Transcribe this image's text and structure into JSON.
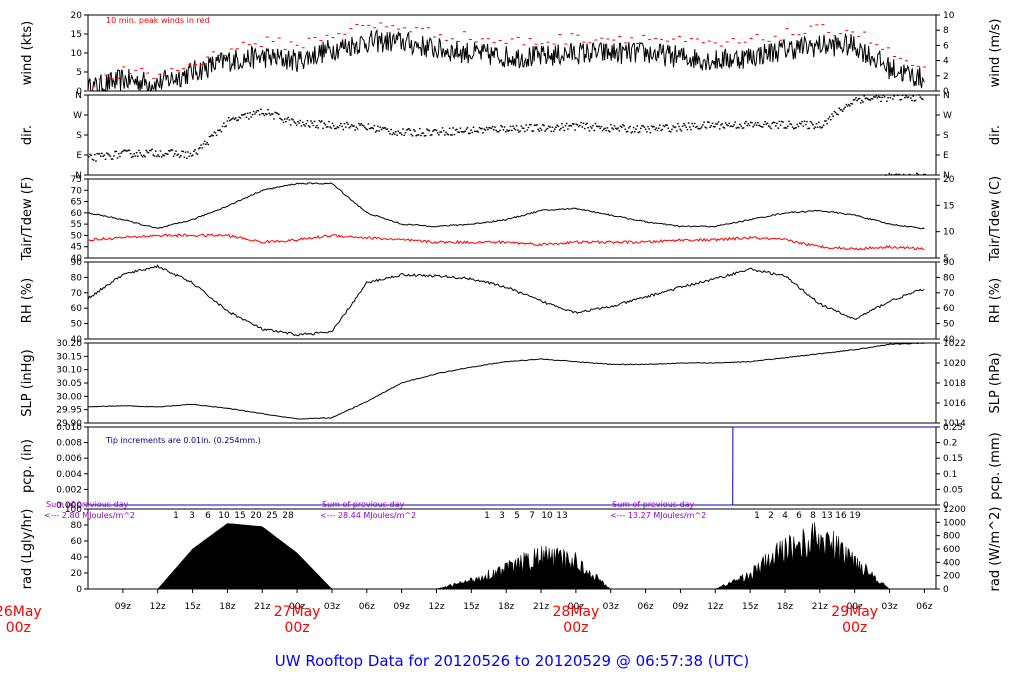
{
  "title": "UW Rooftop Data for 20120526  to  20120529 @ 06:57:38  (UTC)",
  "colors": {
    "title": "#0000ff",
    "day_label": "#ff0000",
    "peak_wind": "#ff0000",
    "tdew": "#ff0000",
    "rain_line": "#0000cc",
    "rain_note": "#00008b",
    "rad_note": "#9400d3",
    "series": "#000000"
  },
  "time_axis": {
    "start": "2012-05-26 06:00Z",
    "end": "2012-05-29 07:00Z",
    "hour_ticks": [
      "09z",
      "12z",
      "15z",
      "18z",
      "21z",
      "00z",
      "03z",
      "06z",
      "09z",
      "12z",
      "15z",
      "18z",
      "21z",
      "00z",
      "03z",
      "06z",
      "09z",
      "12z",
      "15z",
      "18z",
      "21z",
      "00z",
      "03z",
      "06z"
    ],
    "day_labels": [
      {
        "month_day": "26May",
        "hour": "00z"
      },
      {
        "month_day": "27May",
        "hour": "00z"
      },
      {
        "month_day": "28May",
        "hour": "00z"
      },
      {
        "month_day": "29May",
        "hour": "00z"
      }
    ]
  },
  "chart_data": [
    {
      "type": "line",
      "name": "wind",
      "ylabel_left": "wind (kts)",
      "ylabel_right": "wind (m/s)",
      "ylim": [
        0,
        20
      ],
      "left_ticks": [
        "0",
        "5",
        "10",
        "15",
        "20"
      ],
      "right_ticks": [
        "0",
        "2",
        "4",
        "6",
        "8",
        "10"
      ],
      "note": "10 min. peak winds in red",
      "x": [
        "05-26 06z",
        "05-26 09z",
        "05-26 12z",
        "05-26 15z",
        "05-26 18z",
        "05-26 21z",
        "05-27 00z",
        "05-27 03z",
        "05-27 06z",
        "05-27 09z",
        "05-27 12z",
        "05-27 15z",
        "05-27 18z",
        "05-27 21z",
        "05-28 00z",
        "05-28 03z",
        "05-28 06z",
        "05-28 09z",
        "05-28 12z",
        "05-28 15z",
        "05-28 18z",
        "05-28 21z",
        "05-29 00z",
        "05-29 03z",
        "05-29 06z"
      ],
      "series": [
        {
          "values": [
            0.5,
            3,
            2,
            5,
            8,
            9,
            8,
            11,
            13,
            13,
            11,
            10,
            9,
            9,
            10,
            10,
            10,
            9,
            8,
            9,
            11,
            12,
            12,
            6,
            3
          ]
        },
        {
          "values": [
            1,
            5,
            4,
            7,
            11,
            13,
            12,
            15,
            17,
            17,
            15,
            14,
            13,
            13,
            14,
            14,
            14,
            13,
            12,
            13,
            15,
            16,
            16,
            10,
            5
          ]
        }
      ]
    },
    {
      "type": "scatter",
      "name": "dir",
      "ylabel_left": "dir.",
      "ylabel_right": "dir.",
      "ylim": [
        0,
        360
      ],
      "left_ticks": [
        "N",
        "E",
        "S",
        "W",
        "N"
      ],
      "right_ticks": [
        "N",
        "E",
        "S",
        "W",
        "N"
      ],
      "x": [
        "05-26 06z",
        "05-26 09z",
        "05-26 12z",
        "05-26 15z",
        "05-26 18z",
        "05-26 21z",
        "05-27 00z",
        "05-27 03z",
        "05-27 06z",
        "05-27 09z",
        "05-27 12z",
        "05-27 15z",
        "05-27 18z",
        "05-27 21z",
        "05-28 00z",
        "05-28 03z",
        "05-28 06z",
        "05-28 09z",
        "05-28 12z",
        "05-28 15z",
        "05-28 18z",
        "05-28 21z",
        "05-29 00z",
        "05-29 03z",
        "05-29 06z"
      ],
      "values": [
        75,
        95,
        100,
        90,
        240,
        285,
        230,
        225,
        215,
        190,
        195,
        200,
        210,
        210,
        220,
        210,
        205,
        215,
        225,
        225,
        225,
        225,
        340,
        350,
        350
      ]
    },
    {
      "type": "line",
      "name": "temperature",
      "ylabel_left": "Tair/Tdew (F)",
      "ylabel_right": "Tair/Tdew (C)",
      "ylim": [
        40,
        75
      ],
      "left_ticks": [
        "40",
        "45",
        "50",
        "55",
        "60",
        "65",
        "70",
        "75"
      ],
      "right_ticks": [
        "5",
        "10",
        "15",
        "20"
      ],
      "x": [
        "05-26 06z",
        "05-26 09z",
        "05-26 12z",
        "05-26 15z",
        "05-26 18z",
        "05-26 21z",
        "05-27 00z",
        "05-27 03z",
        "05-27 06z",
        "05-27 09z",
        "05-27 12z",
        "05-27 15z",
        "05-27 18z",
        "05-27 21z",
        "05-28 00z",
        "05-28 03z",
        "05-28 06z",
        "05-28 09z",
        "05-28 12z",
        "05-28 15z",
        "05-28 18z",
        "05-28 21z",
        "05-29 00z",
        "05-29 03z",
        "05-29 06z"
      ],
      "series": [
        {
          "values": [
            60,
            57,
            53,
            57,
            63,
            70,
            73,
            73,
            60,
            55,
            54,
            55,
            57,
            61,
            62,
            59,
            56,
            54,
            54,
            57,
            60,
            61,
            59,
            55,
            53
          ]
        },
        {
          "values": [
            48,
            49,
            50,
            50,
            50,
            47,
            48,
            50,
            49,
            48,
            47,
            47,
            47,
            46,
            47,
            47,
            47,
            48,
            48,
            49,
            48,
            45,
            44,
            45,
            44
          ]
        }
      ]
    },
    {
      "type": "line",
      "name": "rh",
      "ylabel_left": "RH (%)",
      "ylabel_right": "RH (%)",
      "ylim": [
        35,
        90
      ],
      "left_ticks": [
        "40",
        "50",
        "60",
        "70",
        "80",
        "90"
      ],
      "right_ticks": [
        "40",
        "50",
        "60",
        "70",
        "80",
        "90"
      ],
      "x": [
        "05-26 06z",
        "05-26 09z",
        "05-26 12z",
        "05-26 15z",
        "05-26 18z",
        "05-26 21z",
        "05-27 00z",
        "05-27 03z",
        "05-27 06z",
        "05-27 09z",
        "05-27 12z",
        "05-27 15z",
        "05-27 18z",
        "05-27 21z",
        "05-28 00z",
        "05-28 03z",
        "05-28 06z",
        "05-28 09z",
        "05-28 12z",
        "05-28 15z",
        "05-28 18z",
        "05-28 21z",
        "05-29 00z",
        "05-29 03z",
        "05-29 06z"
      ],
      "values": [
        64,
        81,
        87,
        75,
        55,
        42,
        38,
        40,
        75,
        81,
        80,
        78,
        72,
        62,
        54,
        58,
        65,
        72,
        78,
        85,
        80,
        60,
        49,
        62,
        71
      ]
    },
    {
      "type": "line",
      "name": "slp",
      "ylabel_left": "SLP (inHg)",
      "ylabel_right": "SLP (hPa)",
      "ylim": [
        29.9,
        30.2
      ],
      "left_ticks": [
        "29.90",
        "29.95",
        "30.00",
        "30.05",
        "30.10",
        "30.15",
        "30.20"
      ],
      "right_ticks": [
        "1014",
        "1016",
        "1018",
        "1020",
        "1022"
      ],
      "x": [
        "05-26 06z",
        "05-26 09z",
        "05-26 12z",
        "05-26 15z",
        "05-26 18z",
        "05-26 21z",
        "05-27 00z",
        "05-27 03z",
        "05-27 06z",
        "05-27 09z",
        "05-27 12z",
        "05-27 15z",
        "05-27 18z",
        "05-27 21z",
        "05-28 00z",
        "05-28 03z",
        "05-28 06z",
        "05-28 09z",
        "05-28 12z",
        "05-28 15z",
        "05-28 18z",
        "05-28 21z",
        "05-29 00z",
        "05-29 03z",
        "05-29 06z"
      ],
      "values": [
        29.96,
        29.965,
        29.96,
        29.97,
        29.955,
        29.935,
        29.915,
        29.92,
        29.98,
        30.05,
        30.085,
        30.11,
        30.13,
        30.14,
        30.13,
        30.12,
        30.12,
        30.125,
        30.125,
        30.13,
        30.145,
        30.16,
        30.175,
        30.195,
        30.2
      ]
    },
    {
      "type": "line",
      "name": "pcp",
      "ylabel_left": "pcp. (in)",
      "ylabel_right": "pcp. (mm)",
      "ylim": [
        0,
        0.01
      ],
      "left_ticks": [
        "0.000",
        "0.002",
        "0.004",
        "0.006",
        "0.008",
        "0.010"
      ],
      "right_ticks": [
        "0",
        "0.05",
        "0.1",
        "0.15",
        "0.2",
        "0.25"
      ],
      "note": "Tip increments are 0.01in. (0.254mm.)",
      "x": [
        "05-26 06z",
        "05-28 13:30z",
        "05-28 13:31z",
        "05-29 07z"
      ],
      "values": [
        0,
        0,
        0.01,
        0.01
      ]
    },
    {
      "type": "area",
      "name": "rad",
      "ylabel_left": "rad (Lgly/hr)",
      "ylabel_right": "rad (W/m^2)",
      "ylim": [
        0,
        100
      ],
      "left_ticks": [
        "0",
        "20",
        "40",
        "60",
        "80",
        "100"
      ],
      "right_ticks": [
        "0",
        "200",
        "400",
        "600",
        "800",
        "1000",
        "1200"
      ],
      "sums": [
        {
          "line1": "Sum of previous day",
          "line2": "<--- 2.80 MJoules/m^2"
        },
        {
          "line1": "Sum of previous day",
          "line2": "<--- 28.44 MJoules/m^2"
        },
        {
          "line1": "Sum of previous day",
          "line2": "<--- 13.27 MJoules/m^2"
        }
      ],
      "hour_marks": [
        [
          "1",
          "3",
          "6",
          "10",
          "15",
          "20",
          "25",
          "28"
        ],
        [
          "1",
          "3",
          "5",
          "7",
          "10",
          "13"
        ],
        [
          "1",
          "2",
          "4",
          "6",
          "8",
          "13",
          "16",
          "19"
        ]
      ],
      "x": [
        "05-26 06z",
        "05-26 12z",
        "05-26 15z",
        "05-26 18z",
        "05-26 21z",
        "05-27 00z",
        "05-27 02z",
        "05-27 03z",
        "05-27 12z",
        "05-27 15z",
        "05-27 18z",
        "05-27 21z",
        "05-28 00z",
        "05-28 03z",
        "05-28 12z",
        "05-28 15z",
        "05-28 18z",
        "05-28 21z",
        "05-29 00z",
        "05-29 03z",
        "05-29 06z"
      ],
      "values": [
        0,
        0,
        50,
        82,
        78,
        45,
        15,
        0,
        0,
        12,
        28,
        45,
        38,
        0,
        0,
        20,
        55,
        70,
        40,
        0,
        0
      ]
    }
  ]
}
